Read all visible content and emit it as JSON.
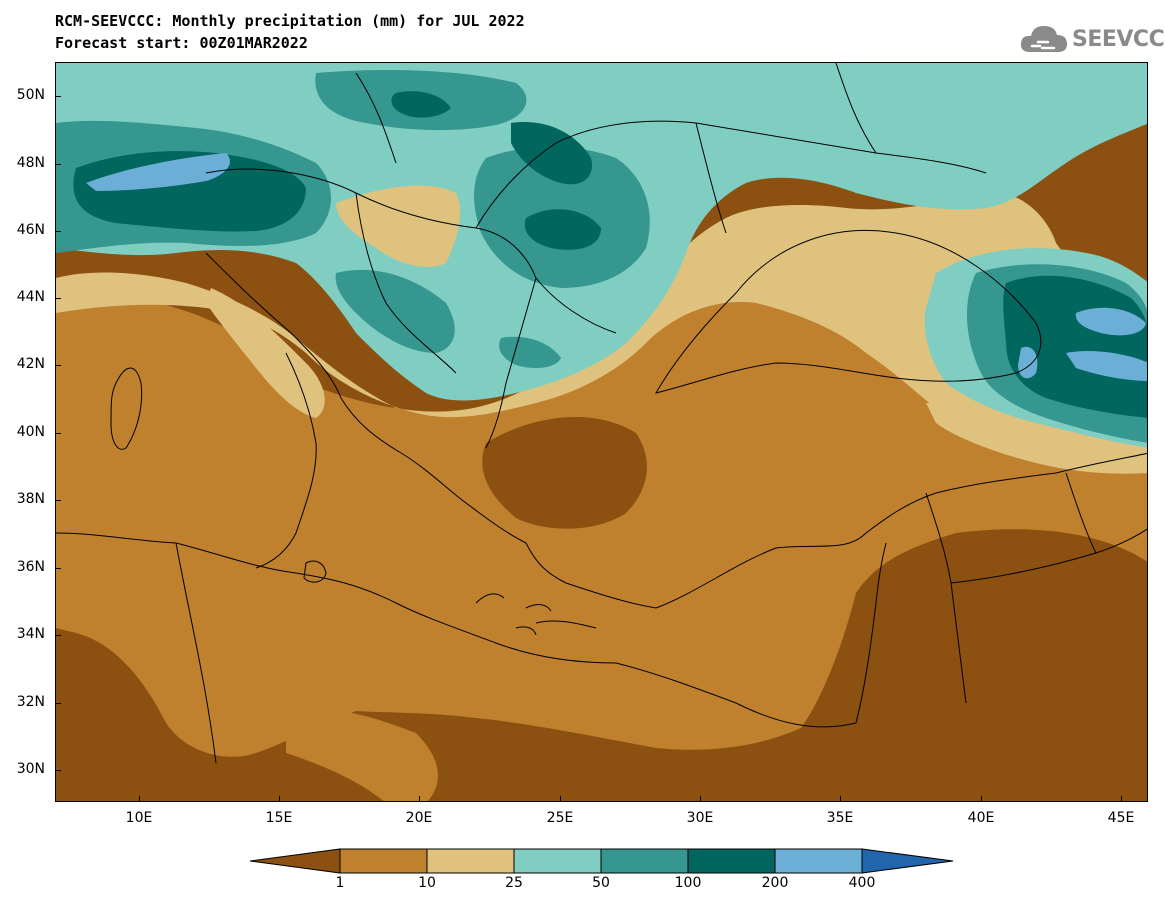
{
  "title": {
    "line1": "RCM-SEEVCCC: Monthly precipitation (mm) for JUL 2022",
    "line2": "Forecast start: 00Z01MAR2022"
  },
  "logo": {
    "text": "SEEVCCC",
    "icon": "cloud-icon"
  },
  "axes": {
    "lon_ticks": [
      "10E",
      "15E",
      "20E",
      "25E",
      "30E",
      "35E",
      "40E",
      "45E"
    ],
    "lat_ticks": [
      "50N",
      "48N",
      "46N",
      "44N",
      "42N",
      "40N",
      "38N",
      "36N",
      "34N",
      "32N",
      "30N"
    ],
    "lon_range": [
      7,
      46
    ],
    "lat_range": [
      29,
      51
    ]
  },
  "legend": {
    "labels": [
      "1",
      "10",
      "25",
      "50",
      "100",
      "200",
      "400"
    ],
    "colors": [
      "#8c5010",
      "#bf812d",
      "#dfc27d",
      "#80cdc1",
      "#35978f",
      "#01665e",
      "#6baed6",
      "#2166ac"
    ]
  }
}
